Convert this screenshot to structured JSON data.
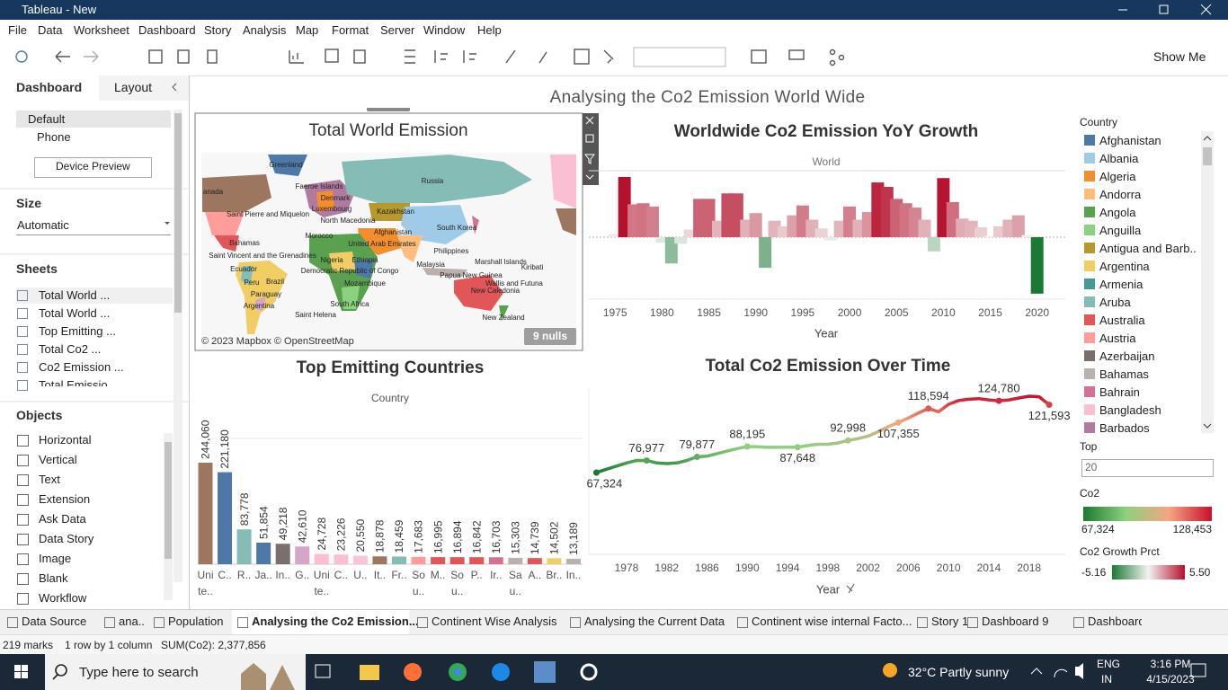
{
  "window": {
    "title": "Tableau - New"
  },
  "menu": [
    "File",
    "Data",
    "Worksheet",
    "Dashboard",
    "Story",
    "Analysis",
    "Map",
    "Format",
    "Server",
    "Window",
    "Help"
  ],
  "toolbar": {
    "show_me": "Show Me"
  },
  "side_panel": {
    "tabs": [
      "Dashboard",
      "Layout"
    ],
    "devices": [
      "Default",
      "Phone"
    ],
    "device_preview": "Device Preview",
    "size": {
      "heading": "Size",
      "value": "Automatic"
    },
    "sheets": {
      "heading": "Sheets",
      "items": [
        "Total World ...",
        "Total World ...",
        "Top Emitting ...",
        "Total Co2 ...",
        "Co2 Emission ...",
        "Total Emissio..."
      ]
    },
    "objects": {
      "heading": "Objects",
      "items": [
        "Horizontal",
        "Vertical",
        "Text",
        "Extension",
        "Ask Data",
        "Data Story",
        "Image",
        "Blank",
        "Workflow"
      ]
    }
  },
  "dashboard": {
    "title": "Analysing the Co2 Emission World Wide",
    "map": {
      "title": "Total World Emission",
      "labels": [
        "Greenland",
        "Russia",
        "Faeroe Islands",
        "Denmark",
        "anada",
        "Luxembourg",
        "Kazakhstan",
        "Saint Pierre and Miquelon",
        "North Macedonia",
        "Afghanistan",
        "South Korea",
        "Morocco",
        "United Arab Emirates",
        "Bahamas",
        "Philippines",
        "Saint Vincent and the Grenadines",
        "Nigeria",
        "Ethiopia",
        "Malaysia",
        "Marshall Islands",
        "Kiribati",
        "Ecuador",
        "Democratic Republic of Congo",
        "Papua New Guinea",
        "Peru",
        "Brazil",
        "Mozambique",
        "Wallis and Futuna",
        "New Caledonia",
        "Paraguay",
        "Argentina",
        "South Africa",
        "Saint Helena",
        "New Zealand"
      ],
      "credit": "© 2023 Mapbox © OpenStreetMap",
      "nulls": "9 nulls"
    }
  },
  "chart_data": [
    {
      "type": "bar",
      "title": "Worldwide Co2 Emission YoY Growth",
      "header": "World",
      "x_label": "Year",
      "x": [
        1975,
        1976,
        1977,
        1978,
        1979,
        1980,
        1981,
        1982,
        1983,
        1984,
        1985,
        1986,
        1987,
        1988,
        1989,
        1990,
        1991,
        1992,
        1993,
        1994,
        1995,
        1996,
        1997,
        1998,
        1999,
        2000,
        2001,
        2002,
        2003,
        2004,
        2005,
        2006,
        2007,
        2008,
        2009,
        2010,
        2011,
        2012,
        2013,
        2014,
        2015,
        2016,
        2017,
        2018,
        2019,
        2020
      ],
      "values": [
        0.3,
        5.5,
        3.0,
        3.1,
        2.8,
        -0.5,
        -2.4,
        -0.6,
        0.7,
        3.5,
        3.5,
        1.5,
        4.0,
        4.0,
        1.6,
        2.2,
        -2.8,
        1.5,
        1.0,
        2.0,
        2.9,
        1.6,
        0.8,
        -0.3,
        1.5,
        2.8,
        1.6,
        2.3,
        5.0,
        4.6,
        3.5,
        3.1,
        2.7,
        1.6,
        -1.3,
        5.4,
        3.2,
        1.7,
        1.5,
        0.9,
        0.1,
        1.0,
        1.6,
        2.0,
        0.2,
        -5.16
      ],
      "xlim": [
        1972.2,
        2023
      ],
      "xticks": [
        1975,
        1980,
        1985,
        1990,
        1995,
        2000,
        2005,
        2010,
        2015,
        2020
      ]
    },
    {
      "type": "bar",
      "title": "Top Emitting Countries",
      "header": "Country",
      "categories": [
        "Uni te..",
        "C..",
        "R..",
        "Ja..",
        "In..",
        "G..",
        "Uni te..",
        "C..",
        "U..",
        "It..",
        "Fr..",
        "So u..",
        "M..",
        "So u..",
        "P..",
        "Ir..",
        "Sa u..",
        "A..",
        "Br..",
        "In.."
      ],
      "values": [
        244060,
        221180,
        83778,
        51854,
        49218,
        42610,
        24728,
        23226,
        20550,
        18878,
        18459,
        17683,
        16995,
        16894,
        16842,
        16703,
        15303,
        14739,
        14502,
        13189
      ],
      "value_labels": [
        "244,060",
        "221,180",
        "83,778",
        "51,854",
        "49,218",
        "42,610",
        "24,728",
        "23,226",
        "20,550",
        "18,878",
        "18,459",
        "17,683",
        "16,995",
        "16,894",
        "16,842",
        "16,703",
        "15,303",
        "14,739",
        "14,502",
        "13,189"
      ],
      "colors": [
        "#9d7660",
        "#4e79a7",
        "#86bcb6",
        "#4e79a7",
        "#79706e",
        "#d4a6c8",
        "#fabfd2",
        "#fabfd2",
        "#f7c6d6",
        "#9d7660",
        "#86bcb6",
        "#ff9d9a",
        "#e15759",
        "#e15759",
        "#e15759",
        "#d37295",
        "#bab0ac",
        "#e15759",
        "#f1ce63",
        "#bab0ac"
      ]
    },
    {
      "type": "line",
      "title": "Total Co2 Emission Over Time",
      "x_label": "Year",
      "x": [
        1975,
        1976,
        1977,
        1978,
        1979,
        1980,
        1981,
        1982,
        1983,
        1984,
        1985,
        1986,
        1987,
        1988,
        1989,
        1990,
        1991,
        1992,
        1993,
        1994,
        1995,
        1996,
        1997,
        1998,
        1999,
        2000,
        2001,
        2002,
        2003,
        2004,
        2005,
        2006,
        2007,
        2008,
        2009,
        2010,
        2011,
        2012,
        2013,
        2014,
        2015,
        2016,
        2017,
        2018,
        2019,
        2020
      ],
      "values": [
        67324,
        70000,
        72500,
        75000,
        77000,
        76977,
        75000,
        74500,
        75000,
        77000,
        79877,
        80500,
        82500,
        84500,
        86500,
        88195,
        88000,
        87500,
        87500,
        87600,
        87648,
        89000,
        90000,
        90000,
        91000,
        92998,
        94500,
        96500,
        100000,
        104000,
        107355,
        111000,
        115000,
        118594,
        116000,
        122000,
        125000,
        126000,
        126500,
        125500,
        124780,
        125500,
        127000,
        128453,
        128000,
        121593
      ],
      "value_labels": [
        "67,324",
        null,
        null,
        null,
        null,
        "76,977",
        null,
        null,
        null,
        null,
        "79,877",
        null,
        null,
        null,
        null,
        "88,195",
        null,
        null,
        null,
        null,
        "87,648",
        null,
        null,
        null,
        null,
        "92,998",
        null,
        null,
        null,
        null,
        "107,355",
        null,
        null,
        "118,594",
        null,
        null,
        null,
        null,
        null,
        null,
        "124,780",
        null,
        null,
        null,
        null,
        "121,593"
      ],
      "xlim": [
        1974.25,
        2021.6
      ],
      "xticks": [
        1978,
        1982,
        1986,
        1990,
        1994,
        1998,
        2002,
        2006,
        2010,
        2014,
        2018
      ]
    }
  ],
  "legends": {
    "country": {
      "title": "Country",
      "items": [
        {
          "name": "Afghanistan",
          "color": "#4e79a7"
        },
        {
          "name": "Albania",
          "color": "#a0cbe8"
        },
        {
          "name": "Algeria",
          "color": "#f28e2b"
        },
        {
          "name": "Andorra",
          "color": "#ffbe7d"
        },
        {
          "name": "Angola",
          "color": "#59a14f"
        },
        {
          "name": "Anguilla",
          "color": "#8cd17d"
        },
        {
          "name": "Antigua and Barb..",
          "color": "#b6992d"
        },
        {
          "name": "Argentina",
          "color": "#f1ce63"
        },
        {
          "name": "Armenia",
          "color": "#499894"
        },
        {
          "name": "Aruba",
          "color": "#86bcb6"
        },
        {
          "name": "Australia",
          "color": "#e15759"
        },
        {
          "name": "Austria",
          "color": "#ff9d9a"
        },
        {
          "name": "Azerbaijan",
          "color": "#79706e"
        },
        {
          "name": "Bahamas",
          "color": "#bab0ac"
        },
        {
          "name": "Bahrain",
          "color": "#d37295"
        },
        {
          "name": "Bangladesh",
          "color": "#fabfd2"
        },
        {
          "name": "Barbados",
          "color": "#b07aa1"
        }
      ]
    },
    "top": {
      "title": "Top",
      "value": "20"
    },
    "co2": {
      "title": "Co2",
      "range": [
        {
          "value": 67324,
          "label": "67,324"
        },
        {
          "value": 128453,
          "label": "128,453"
        }
      ],
      "colors": [
        "#1a7a33",
        "#8fd07e",
        "#f4a582",
        "#c8102e"
      ]
    },
    "growth": {
      "title": "Co2 Growth Prct",
      "range": [
        -5.16,
        {
          "value": 5.5,
          "label": "5.50"
        }
      ],
      "colors": [
        "#1a7a33",
        "#f3f3f3",
        "#b5102c"
      ]
    }
  },
  "sheet_tabs": [
    "Data Source",
    "ana..",
    "Population",
    "Analysing the Co2 Emission...",
    "Continent Wise Analysis",
    "Analysing the Current Data",
    "Continent wise internal Facto...",
    "Story 1",
    "Dashboard 9",
    "Dashboard"
  ],
  "status": {
    "marks": "219 marks",
    "layout": "1 row by 1 column",
    "sum": "SUM(Co2): 2,377,856"
  },
  "taskbar": {
    "search": "Type here to search",
    "weather": "32°C Partly sunny",
    "language": [
      "ENG",
      "IN"
    ],
    "time": "3:16 PM",
    "date": "4/15/2023"
  }
}
